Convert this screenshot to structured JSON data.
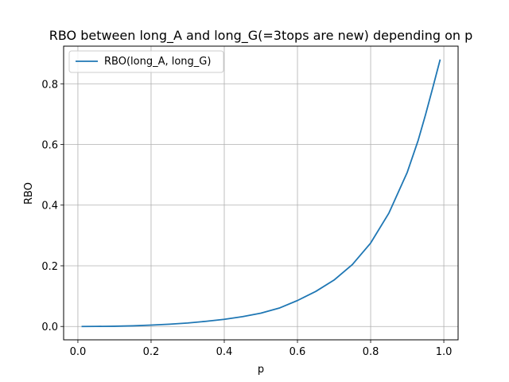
{
  "chart_data": {
    "type": "line",
    "title": "RBO between long_A and long_G(=3tops are new) depending on p",
    "xlabel": "p",
    "ylabel": "RBO",
    "xlim": [
      -0.039,
      1.039
    ],
    "ylim": [
      -0.044,
      0.924
    ],
    "xticks": [
      0.0,
      0.2,
      0.4,
      0.6,
      0.8,
      1.0
    ],
    "xtick_labels": [
      "0.0",
      "0.2",
      "0.4",
      "0.6",
      "0.8",
      "1.0"
    ],
    "yticks": [
      0.0,
      0.2,
      0.4,
      0.6,
      0.8
    ],
    "ytick_labels": [
      "0.0",
      "0.2",
      "0.4",
      "0.6",
      "0.8"
    ],
    "grid": true,
    "legend_position": "upper-left",
    "series": [
      {
        "name": "RBO(long_A, long_G)",
        "color": "#1f77b4",
        "x": [
          0.01,
          0.05,
          0.1,
          0.15,
          0.2,
          0.25,
          0.3,
          0.35,
          0.4,
          0.45,
          0.5,
          0.55,
          0.6,
          0.65,
          0.7,
          0.75,
          0.8,
          0.85,
          0.9,
          0.93,
          0.95,
          0.97,
          0.99
        ],
        "y": [
          0.0,
          0.0002,
          0.0008,
          0.002,
          0.0045,
          0.0075,
          0.0115,
          0.017,
          0.0235,
          0.0325,
          0.044,
          0.0605,
          0.0855,
          0.1155,
          0.153,
          0.204,
          0.275,
          0.374,
          0.508,
          0.614,
          0.698,
          0.788,
          0.88
        ]
      }
    ]
  }
}
